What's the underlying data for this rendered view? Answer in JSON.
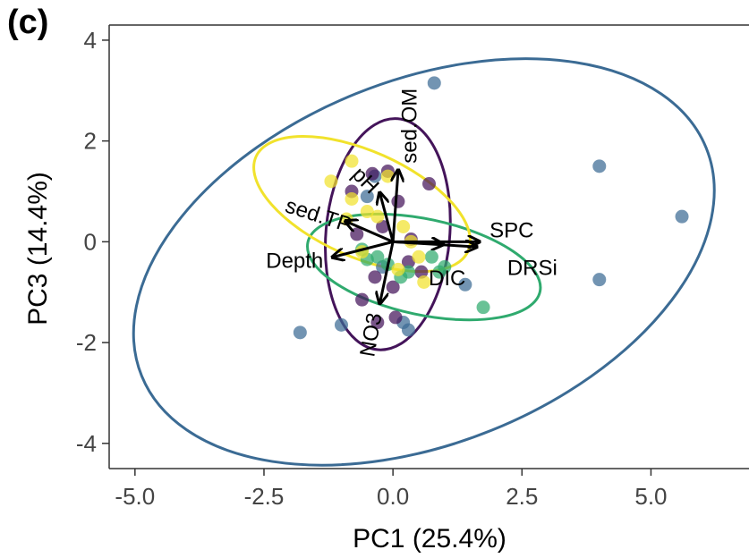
{
  "panel_label": "(c)",
  "chart_data": {
    "type": "scatter",
    "title": "",
    "xlabel": "PC1 (25.4%)",
    "ylabel": "PC3 (14.4%)",
    "xlim": [
      -5.5,
      6.9
    ],
    "ylim": [
      -4.5,
      4.3
    ],
    "xticks": [
      -5.0,
      -2.5,
      0.0,
      2.5,
      5.0
    ],
    "yticks": [
      -4,
      -2,
      0,
      2,
      4
    ],
    "xtick_labels": [
      "-5.0",
      "-2.5",
      "0.0",
      "2.5",
      "5.0"
    ],
    "ytick_labels": [
      "-4",
      "-2",
      "0",
      "2",
      "4"
    ],
    "grid": false,
    "legend": "none",
    "series": [
      {
        "color": "#3b6b94",
        "ellipse": {
          "cx": 0.6,
          "cy": -0.4,
          "rx": 5.9,
          "ry": 3.6,
          "angle_deg": 22
        },
        "points": [
          [
            0.8,
            3.15
          ],
          [
            4.0,
            1.5
          ],
          [
            5.6,
            0.5
          ],
          [
            4.0,
            -0.75
          ],
          [
            -1.8,
            -1.8
          ],
          [
            -1.0,
            -1.65
          ],
          [
            -0.35,
            1.3
          ],
          [
            0.2,
            -1.6
          ],
          [
            1.4,
            -0.85
          ],
          [
            -0.5,
            0.9
          ],
          [
            0.3,
            -1.75
          ],
          [
            -0.2,
            -0.5
          ]
        ]
      },
      {
        "color": "#44145a",
        "ellipse": {
          "cx": -0.1,
          "cy": 0.15,
          "rx": 1.2,
          "ry": 2.3,
          "angle_deg": -5
        },
        "points": [
          [
            -0.4,
            1.35
          ],
          [
            -0.1,
            1.4
          ],
          [
            0.7,
            1.15
          ],
          [
            -0.8,
            1.0
          ],
          [
            0.1,
            0.8
          ],
          [
            -0.2,
            0.3
          ],
          [
            -0.7,
            0.15
          ],
          [
            -0.35,
            -0.7
          ],
          [
            0.3,
            -0.4
          ],
          [
            0.55,
            -0.6
          ],
          [
            -0.6,
            -1.15
          ],
          [
            0.05,
            -1.5
          ],
          [
            -0.3,
            -1.6
          ],
          [
            0.35,
            0.05
          ],
          [
            0.0,
            -0.9
          ]
        ]
      },
      {
        "color": "#2faa6e",
        "ellipse": {
          "cx": 0.6,
          "cy": -0.5,
          "rx": 2.3,
          "ry": 0.95,
          "angle_deg": -12
        },
        "points": [
          [
            1.75,
            -1.3
          ],
          [
            1.0,
            -0.5
          ],
          [
            0.75,
            -0.3
          ],
          [
            -0.3,
            -0.3
          ],
          [
            -0.1,
            -0.45
          ],
          [
            0.3,
            -0.6
          ],
          [
            0.15,
            -0.7
          ],
          [
            -0.5,
            -0.35
          ],
          [
            0.9,
            -0.6
          ],
          [
            -0.6,
            -0.15
          ]
        ]
      },
      {
        "color": "#f1e22c",
        "ellipse": {
          "cx": -0.6,
          "cy": 0.75,
          "rx": 2.25,
          "ry": 1.05,
          "angle_deg": -24
        },
        "points": [
          [
            -0.8,
            1.6
          ],
          [
            -1.2,
            1.2
          ],
          [
            -0.1,
            1.3
          ],
          [
            -0.8,
            0.85
          ],
          [
            -0.5,
            0.6
          ],
          [
            -0.9,
            0.45
          ],
          [
            -0.3,
            0.5
          ],
          [
            0.2,
            0.3
          ],
          [
            0.35,
            0.0
          ],
          [
            0.5,
            -0.3
          ],
          [
            0.1,
            -0.55
          ],
          [
            -0.6,
            -0.2
          ],
          [
            0.6,
            -0.8
          ]
        ]
      }
    ],
    "vectors": [
      {
        "label": "sed.OM",
        "x": 0.1,
        "y": 1.4,
        "label_x": 0.35,
        "label_y": 2.3,
        "rotate": -90,
        "anchor": "middle"
      },
      {
        "label": "pH",
        "x": -0.25,
        "y": 0.95,
        "label_x": -0.55,
        "label_y": 1.2,
        "rotate": 45,
        "anchor": "middle"
      },
      {
        "label": "sed.TP",
        "x": -0.9,
        "y": 0.4,
        "label_x": -1.45,
        "label_y": 0.5,
        "rotate": 18,
        "anchor": "middle"
      },
      {
        "label": "Depth",
        "x": -1.15,
        "y": -0.3,
        "label_x": -1.35,
        "label_y": -0.4,
        "rotate": 0,
        "anchor": "end"
      },
      {
        "label": "NO3",
        "x": -0.25,
        "y": -1.2,
        "label_x": -0.4,
        "label_y": -1.85,
        "rotate": -80,
        "anchor": "middle"
      },
      {
        "label": "DIC",
        "x": 0.95,
        "y": -0.05,
        "label_x": 1.05,
        "label_y": -0.75,
        "rotate": 0,
        "anchor": "middle"
      },
      {
        "label": "SPC",
        "x": 1.65,
        "y": 0.0,
        "label_x": 2.3,
        "label_y": 0.2,
        "rotate": 0,
        "anchor": "middle"
      },
      {
        "label": "DRSi",
        "x": 1.6,
        "y": -0.1,
        "label_x": 2.7,
        "label_y": -0.55,
        "rotate": 0,
        "anchor": "middle"
      }
    ],
    "vector_origin": [
      0.0,
      0.0
    ]
  }
}
